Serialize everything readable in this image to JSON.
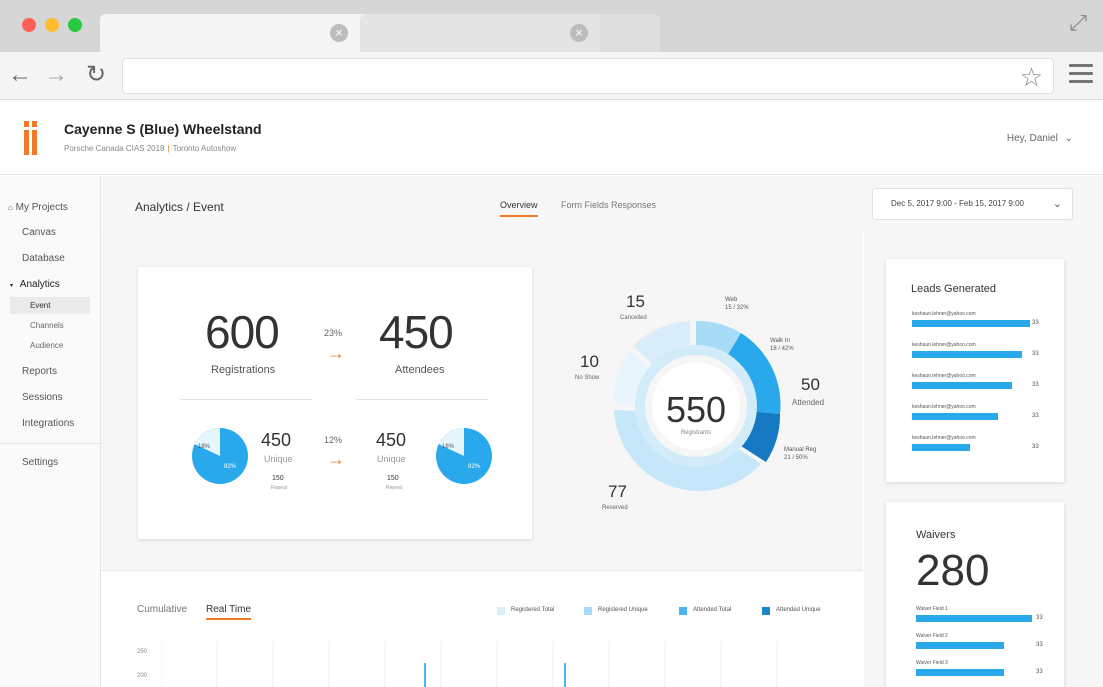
{
  "browser": {
    "tabs": [
      {
        "label": ""
      },
      {
        "label": ""
      }
    ],
    "address": ""
  },
  "app": {
    "project_title": "Cayenne S (Blue) Wheelstand",
    "project_sub_left": "Porsche Canada CIAS 2018",
    "project_sub_sep": "|",
    "project_sub_right": "Toronto Autoshow",
    "user_greeting": "Hey, Daniel"
  },
  "sidebar": {
    "items": [
      {
        "label": "My Projects"
      },
      {
        "label": "Canvas"
      },
      {
        "label": "Database"
      },
      {
        "label": "Analytics"
      },
      {
        "label": "Event"
      },
      {
        "label": "Channels"
      },
      {
        "label": "Audience"
      },
      {
        "label": "Reports"
      },
      {
        "label": "Sessions"
      },
      {
        "label": "Integrations"
      },
      {
        "label": "Settings"
      }
    ]
  },
  "page": {
    "breadcrumb": "Analytics / Event",
    "tabs": [
      {
        "label": "Overview"
      },
      {
        "label": "Form Fields Responses"
      }
    ],
    "date_range": "Dec 5, 2017 9:00  -  Feb 15, 2017 9:00"
  },
  "funnel": {
    "registrations": "600",
    "registrations_label": "Registrations",
    "conv_pct": "23%",
    "attendees": "450",
    "attendees_label": "Attendees",
    "left_pie": {
      "small_pct": "18%",
      "big_pct": "82%",
      "small_value": 18
    },
    "left_unique": "450",
    "left_unique_label": "Unique",
    "left_repeat": "150",
    "left_repeat_label": "Repeat",
    "unique_pct": "12%",
    "right_unique": "450",
    "right_unique_label": "Unique",
    "right_repeat": "150",
    "right_repeat_label": "Repeat",
    "right_pie": {
      "small_pct": "18%",
      "big_pct": "82%",
      "small_value": 18
    }
  },
  "donut": {
    "center_value": "550",
    "center_label": "Registrants",
    "cancelled": {
      "value": "15",
      "label": "Cancelled"
    },
    "no_show": {
      "value": "10",
      "label": "No Show"
    },
    "reserved": {
      "value": "77",
      "label": "Reserved"
    },
    "attended": {
      "value": "50",
      "label": "Attended"
    },
    "web": {
      "label": "Web",
      "detail": "15 / 32%"
    },
    "walk_in": {
      "label": "Walk In",
      "detail": "18 / 42%"
    },
    "manual_reg": {
      "label": "Manual Reg",
      "detail": "21 / 50%"
    }
  },
  "leads": {
    "title": "Leads Generated",
    "rows": [
      {
        "email": "keshaun.lehner@yahoo.com",
        "value": "33",
        "fraction": 1.0
      },
      {
        "email": "keshaun.lehner@yahoo.com",
        "value": "33",
        "fraction": 0.93
      },
      {
        "email": "keshaun.lehner@yahoo.com",
        "value": "33",
        "fraction": 0.85
      },
      {
        "email": "keshaun.lehner@yahoo.com",
        "value": "33",
        "fraction": 0.73
      },
      {
        "email": "keshaun.lehner@yahoo.com",
        "value": "33",
        "fraction": 0.49
      }
    ]
  },
  "waivers": {
    "title": "Waivers",
    "value": "280",
    "fields": [
      {
        "label": "Waiver Field 1",
        "value": "33",
        "fraction": 1.0
      },
      {
        "label": "Waiver Field 2",
        "value": "33",
        "fraction": 0.76
      },
      {
        "label": "Waiver Field 3",
        "value": "33",
        "fraction": 0.76
      }
    ]
  },
  "timeline": {
    "tabs": [
      {
        "label": "Cumulative"
      },
      {
        "label": "Real Time"
      }
    ],
    "legend": [
      {
        "label": "Registered Total",
        "color": "#d8effb"
      },
      {
        "label": "Registered Unique",
        "color": "#a8dcf6"
      },
      {
        "label": "Attended Total",
        "color": "#4bb6ee"
      },
      {
        "label": "Attended Unique",
        "color": "#1a86cc"
      }
    ],
    "y_ticks": [
      "250",
      "200"
    ]
  },
  "colors": {
    "accent": "#f07a28",
    "blue": "#29a9eb",
    "light_blue": "#bfe4f8"
  }
}
